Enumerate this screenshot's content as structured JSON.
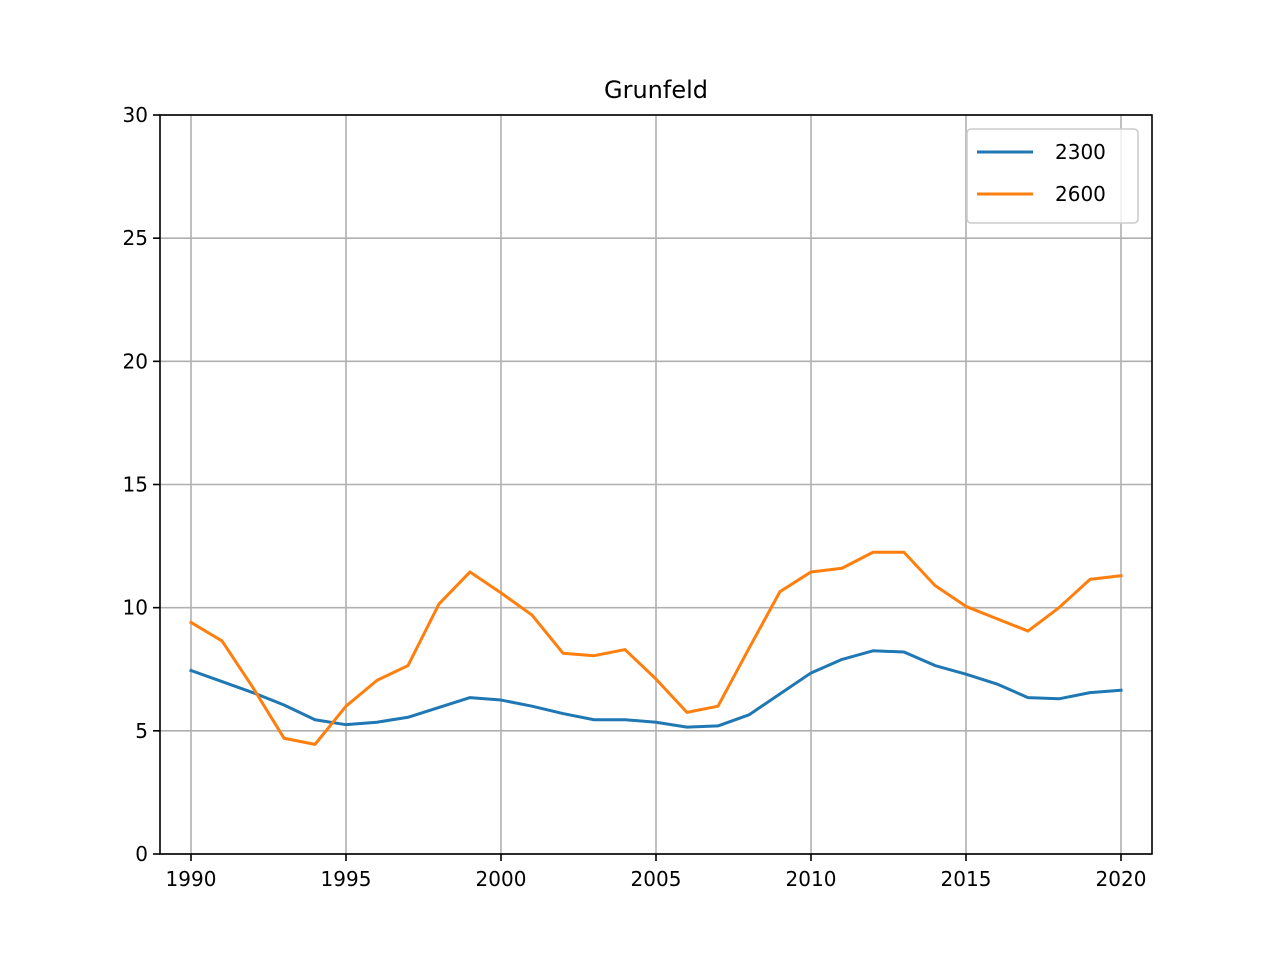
{
  "chart_data": {
    "type": "line",
    "title": "Grunfeld",
    "xlabel": "",
    "ylabel": "",
    "xlim": [
      1989,
      2021
    ],
    "ylim": [
      0,
      30
    ],
    "x_ticks": [
      "1990",
      "1995",
      "2000",
      "2005",
      "2010",
      "2015",
      "2020"
    ],
    "y_ticks": [
      "0",
      "5",
      "10",
      "15",
      "20",
      "25",
      "30"
    ],
    "grid": true,
    "legend_position": "top-right",
    "x": [
      1990,
      1991,
      1992,
      1993,
      1994,
      1995,
      1996,
      1997,
      1998,
      1999,
      2000,
      2001,
      2002,
      2003,
      2004,
      2005,
      2006,
      2007,
      2008,
      2009,
      2010,
      2011,
      2012,
      2013,
      2014,
      2015,
      2016,
      2017,
      2018,
      2019,
      2020
    ],
    "series": [
      {
        "name": "2300",
        "color": "#1f77b4",
        "values": [
          7.45,
          7.0,
          6.55,
          6.05,
          5.45,
          5.25,
          5.35,
          5.55,
          5.95,
          6.35,
          6.25,
          6.0,
          5.7,
          5.45,
          5.45,
          5.35,
          5.15,
          5.2,
          5.65,
          6.5,
          7.35,
          7.9,
          8.25,
          8.2,
          7.65,
          7.3,
          6.9,
          6.35,
          6.3,
          6.55,
          6.65
        ]
      },
      {
        "name": "2600",
        "color": "#ff7f0e",
        "values": [
          9.4,
          8.65,
          6.75,
          4.7,
          4.45,
          6.0,
          7.05,
          7.65,
          10.15,
          11.45,
          10.6,
          9.7,
          8.15,
          8.05,
          8.3,
          7.1,
          5.75,
          6.0,
          8.35,
          10.65,
          11.45,
          11.6,
          12.25,
          12.25,
          10.9,
          10.05,
          9.55,
          9.05,
          10.0,
          11.15,
          11.3
        ]
      }
    ]
  }
}
